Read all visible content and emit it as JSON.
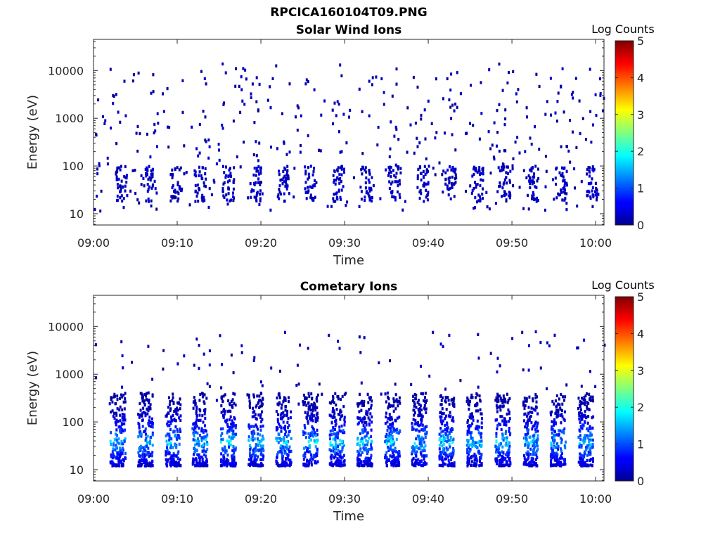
{
  "figure_title": "RPCICA160104T09.PNG",
  "chart_data": [
    {
      "type": "heatmap",
      "title": "Solar Wind Ions",
      "xlabel": "Time",
      "ylabel": "Energy (eV)",
      "x_ticks": [
        "09:00",
        "09:10",
        "09:20",
        "09:30",
        "09:40",
        "09:50",
        "10:00"
      ],
      "xlim": [
        "09:00",
        "10:01"
      ],
      "y_scale": "log",
      "y_ticks": [
        "10",
        "100",
        "1000",
        "10000"
      ],
      "ylim": [
        5.8,
        45000
      ],
      "colorbar": {
        "label": "Log Counts",
        "ticks": [
          "0",
          "1",
          "2",
          "3",
          "4",
          "5"
        ],
        "range": [
          0,
          5
        ],
        "colormap": "jet"
      },
      "data_description": "Sparse background counts (Log Counts ~0-0.5) scattered from ~10 eV to ~15000 eV; denser low-level bursts at 20-100 eV repeating every ~3.4 min",
      "bursts": {
        "minutes": [
          3.2,
          6.5,
          9.8,
          12.6,
          16,
          19.3,
          22.6,
          25.8,
          29.2,
          32.5,
          35.8,
          39.2,
          42.5,
          45.8,
          49,
          52.5,
          55.8,
          59.5
        ],
        "energy_range_eV": [
          18,
          100
        ],
        "peak_log_counts": 0.5
      }
    },
    {
      "type": "heatmap",
      "title": "Cometary Ions",
      "xlabel": "Time",
      "ylabel": "Energy (eV)",
      "x_ticks": [
        "09:00",
        "09:10",
        "09:20",
        "09:30",
        "09:40",
        "09:50",
        "10:00"
      ],
      "xlim": [
        "09:00",
        "10:01"
      ],
      "y_scale": "log",
      "y_ticks": [
        "10",
        "100",
        "1000",
        "10000"
      ],
      "ylim": [
        5.8,
        45000
      ],
      "colorbar": {
        "label": "Log Counts",
        "ticks": [
          "0",
          "1",
          "2",
          "3",
          "4",
          "5"
        ],
        "range": [
          0,
          5
        ],
        "colormap": "jet"
      },
      "data_description": "Periodic bursts of cometary ions every ~3.4 min spanning ~12-150 eV, peak Log Counts ~1.5-2 near 30-45 eV; sparse counts up to ~8000 eV",
      "bursts": {
        "minutes": [
          2.8,
          6.1,
          9.4,
          12.6,
          16,
          19.3,
          22.6,
          25.8,
          29,
          32.3,
          35.6,
          38.8,
          42.1,
          45.4,
          48.8,
          52.1,
          55.4,
          58.7
        ],
        "energy_range_eV": [
          12,
          400
        ],
        "peak_energy_eV": 38,
        "peak_log_counts": 1.9
      }
    }
  ]
}
